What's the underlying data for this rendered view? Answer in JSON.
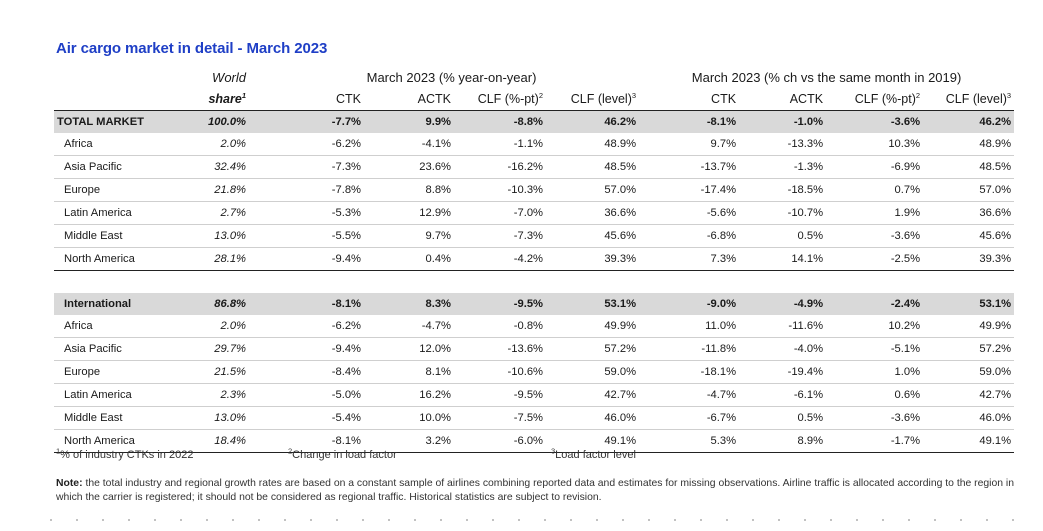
{
  "title": "Air cargo market in detail - March 2023",
  "headers": {
    "world": "World",
    "share": "share",
    "share_sup": "1",
    "group1": "March 2023 (% year-on-year)",
    "group2": "March 2023 (% ch vs the same month in 2019)",
    "ctk": "CTK",
    "actk": "ACTK",
    "clf_pt": "CLF (%-pt)",
    "clf_pt_sup": "2",
    "clf_level": "CLF (level)",
    "clf_level_sup": "3"
  },
  "rows": [
    {
      "name": "TOTAL MARKET",
      "share": "100.0%",
      "v": [
        "-7.7%",
        "9.9%",
        "-8.8%",
        "46.2%",
        "-8.1%",
        "-1.0%",
        "-3.6%",
        "46.2%"
      ]
    },
    {
      "name": "Africa",
      "share": "2.0%",
      "v": [
        "-6.2%",
        "-4.1%",
        "-1.1%",
        "48.9%",
        "9.7%",
        "-13.3%",
        "10.3%",
        "48.9%"
      ]
    },
    {
      "name": "Asia Pacific",
      "share": "32.4%",
      "v": [
        "-7.3%",
        "23.6%",
        "-16.2%",
        "48.5%",
        "-13.7%",
        "-1.3%",
        "-6.9%",
        "48.5%"
      ]
    },
    {
      "name": "Europe",
      "share": "21.8%",
      "v": [
        "-7.8%",
        "8.8%",
        "-10.3%",
        "57.0%",
        "-17.4%",
        "-18.5%",
        "0.7%",
        "57.0%"
      ]
    },
    {
      "name": "Latin America",
      "share": "2.7%",
      "v": [
        "-5.3%",
        "12.9%",
        "-7.0%",
        "36.6%",
        "-5.6%",
        "-10.7%",
        "1.9%",
        "36.6%"
      ]
    },
    {
      "name": "Middle East",
      "share": "13.0%",
      "v": [
        "-5.5%",
        "9.7%",
        "-7.3%",
        "45.6%",
        "-6.8%",
        "0.5%",
        "-3.6%",
        "45.6%"
      ]
    },
    {
      "name": "North America",
      "share": "28.1%",
      "v": [
        "-9.4%",
        "0.4%",
        "-4.2%",
        "39.3%",
        "7.3%",
        "14.1%",
        "-2.5%",
        "39.3%"
      ]
    },
    {
      "name": "International",
      "share": "86.8%",
      "v": [
        "-8.1%",
        "8.3%",
        "-9.5%",
        "53.1%",
        "-9.0%",
        "-4.9%",
        "-2.4%",
        "53.1%"
      ]
    },
    {
      "name": "Africa",
      "share": "2.0%",
      "v": [
        "-6.2%",
        "-4.7%",
        "-0.8%",
        "49.9%",
        "11.0%",
        "-11.6%",
        "10.2%",
        "49.9%"
      ]
    },
    {
      "name": "Asia Pacific",
      "share": "29.7%",
      "v": [
        "-9.4%",
        "12.0%",
        "-13.6%",
        "57.2%",
        "-11.8%",
        "-4.0%",
        "-5.1%",
        "57.2%"
      ]
    },
    {
      "name": "Europe",
      "share": "21.5%",
      "v": [
        "-8.4%",
        "8.1%",
        "-10.6%",
        "59.0%",
        "-18.1%",
        "-19.4%",
        "1.0%",
        "59.0%"
      ]
    },
    {
      "name": "Latin America",
      "share": "2.3%",
      "v": [
        "-5.0%",
        "16.2%",
        "-9.5%",
        "42.7%",
        "-4.7%",
        "-6.1%",
        "0.6%",
        "42.7%"
      ]
    },
    {
      "name": "Middle East",
      "share": "13.0%",
      "v": [
        "-5.4%",
        "10.0%",
        "-7.5%",
        "46.0%",
        "-6.7%",
        "0.5%",
        "-3.6%",
        "46.0%"
      ]
    },
    {
      "name": "North America",
      "share": "18.4%",
      "v": [
        "-8.1%",
        "3.2%",
        "-6.0%",
        "49.1%",
        "5.3%",
        "8.9%",
        "-1.7%",
        "49.1%"
      ]
    }
  ],
  "footnotes": {
    "f1_sup": "1",
    "f1": "% of industry CTKs in 2022",
    "f2_sup": "2",
    "f2": "Change in load factor",
    "f3_sup": "3",
    "f3": "Load factor level"
  },
  "note": {
    "label": "Note:",
    "text": " the total industry and regional growth rates are based on a constant sample of airlines combining reported data and estimates for missing observations. Airline traffic is allocated according to the region in which the carrier is registered; it should not be considered as regional traffic. Historical statistics are subject to revision."
  }
}
